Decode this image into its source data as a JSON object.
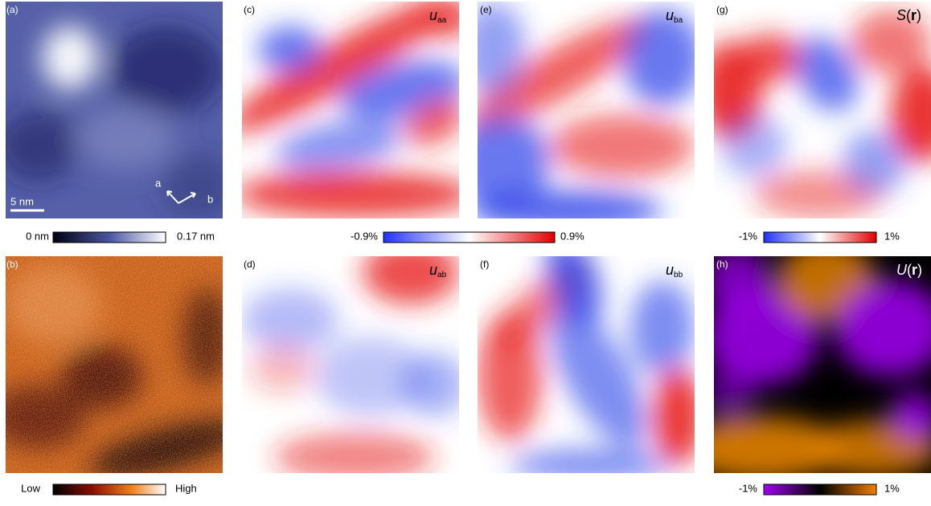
{
  "panels": [
    {
      "label": "(a)"
    },
    {
      "label": "(b)"
    },
    {
      "label": "(c)",
      "symbol": "u",
      "subscript": "aa"
    },
    {
      "label": "(d)",
      "symbol": "u",
      "subscript": "ab"
    },
    {
      "label": "(e)",
      "symbol": "u",
      "subscript": "ba"
    },
    {
      "label": "(f)",
      "symbol": "u",
      "subscript": "bb"
    },
    {
      "label": "(g)",
      "symbol": "S",
      "open": "(",
      "bold": "r",
      "close": ")"
    },
    {
      "label": "(h)",
      "symbol": "U",
      "open": "(",
      "bold": "r",
      "close": ")"
    }
  ],
  "scale_bar": "5 nm",
  "lattice_axes": [
    "a",
    "b"
  ],
  "colorbars": [
    {
      "min_label": "0 nm",
      "max_label": "0.17 nm"
    },
    {
      "min_label": "-0.9%",
      "max_label": "0.9%"
    },
    {
      "min_label": "-1%",
      "max_label": "1%"
    },
    {
      "min_label": "Low",
      "max_label": "High"
    },
    {
      "min_label": "-1%",
      "max_label": "1%"
    }
  ]
}
